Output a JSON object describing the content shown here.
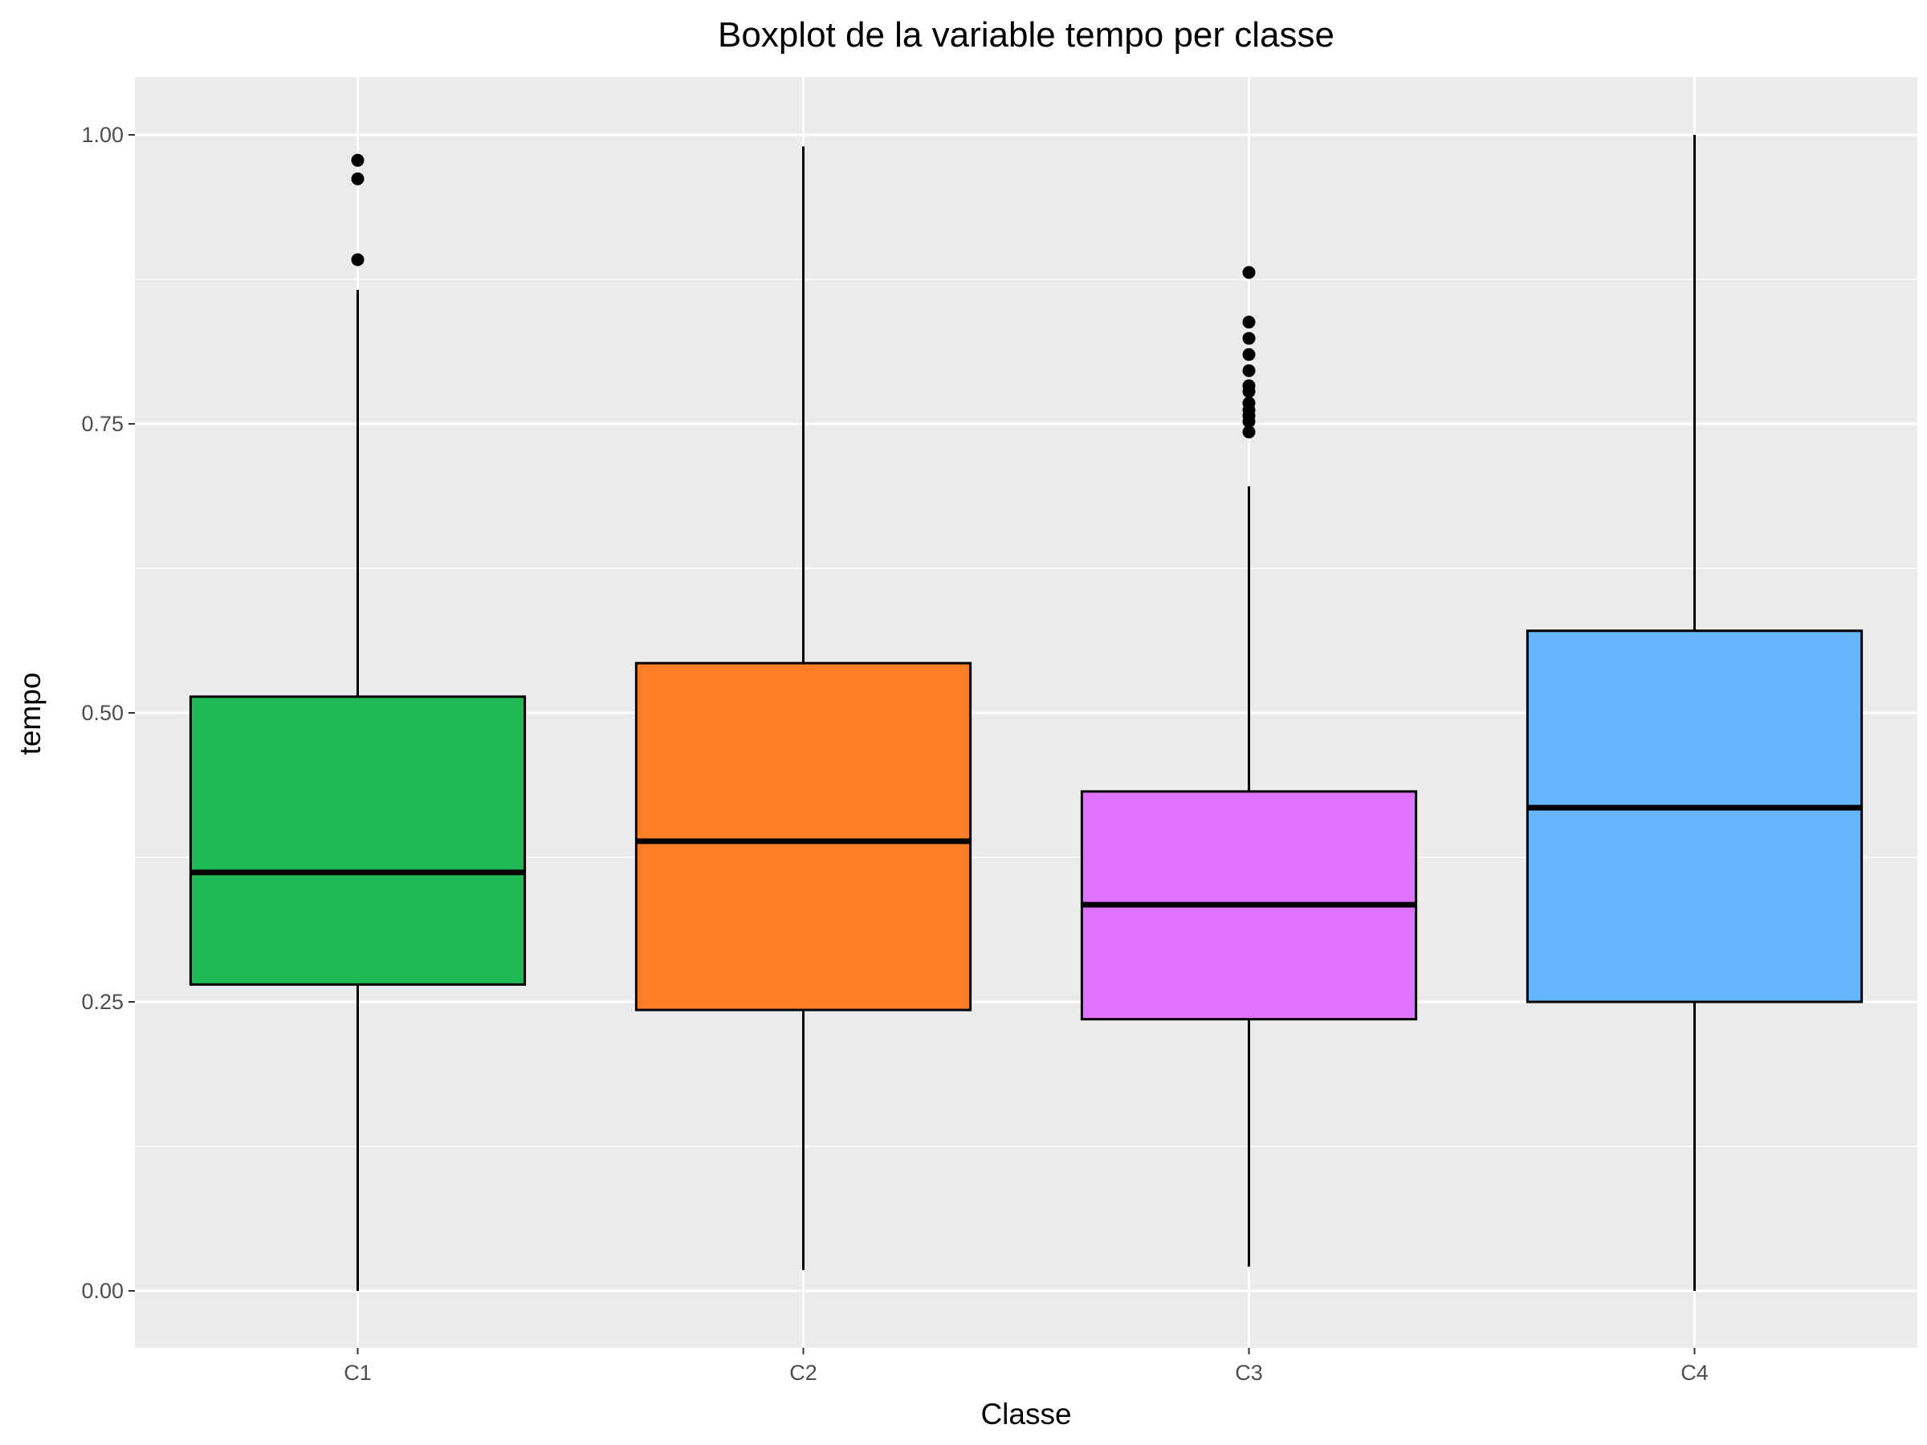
{
  "chart_data": {
    "type": "boxplot",
    "title": "Boxplot de la variable tempo per classe",
    "xlabel": "Classe",
    "ylabel": "tempo",
    "ylim": [
      -0.05,
      1.05
    ],
    "yticks": [
      0.0,
      0.25,
      0.5,
      0.75,
      1.0
    ],
    "ytick_labels": [
      "0.00",
      "0.25",
      "0.50",
      "0.75",
      "1.00"
    ],
    "grid": true,
    "legend": "none",
    "categories": [
      "C1",
      "C2",
      "C3",
      "C4"
    ],
    "boxes": [
      {
        "category": "C1",
        "color": "#1fba55",
        "whisker_low": 0.0,
        "q1": 0.265,
        "median": 0.362,
        "q3": 0.514,
        "whisker_high": 0.866,
        "outliers": [
          0.892,
          0.962,
          0.978
        ]
      },
      {
        "category": "C2",
        "color": "#fe7e26",
        "whisker_low": 0.018,
        "q1": 0.243,
        "median": 0.389,
        "q3": 0.543,
        "whisker_high": 0.99,
        "outliers": []
      },
      {
        "category": "C3",
        "color": "#df72ff",
        "whisker_low": 0.021,
        "q1": 0.235,
        "median": 0.334,
        "q3": 0.432,
        "whisker_high": 0.696,
        "outliers": [
          0.743,
          0.752,
          0.757,
          0.762,
          0.768,
          0.778,
          0.783,
          0.796,
          0.81,
          0.824,
          0.838,
          0.881
        ]
      },
      {
        "category": "C4",
        "color": "#66b5ff",
        "whisker_low": 0.0,
        "q1": 0.25,
        "median": 0.418,
        "q3": 0.571,
        "whisker_high": 1.0,
        "outliers": []
      }
    ],
    "colors": {
      "panel_background": "#ebebeb",
      "grid_line": "#ffffff",
      "box_outline": "#000000"
    }
  }
}
